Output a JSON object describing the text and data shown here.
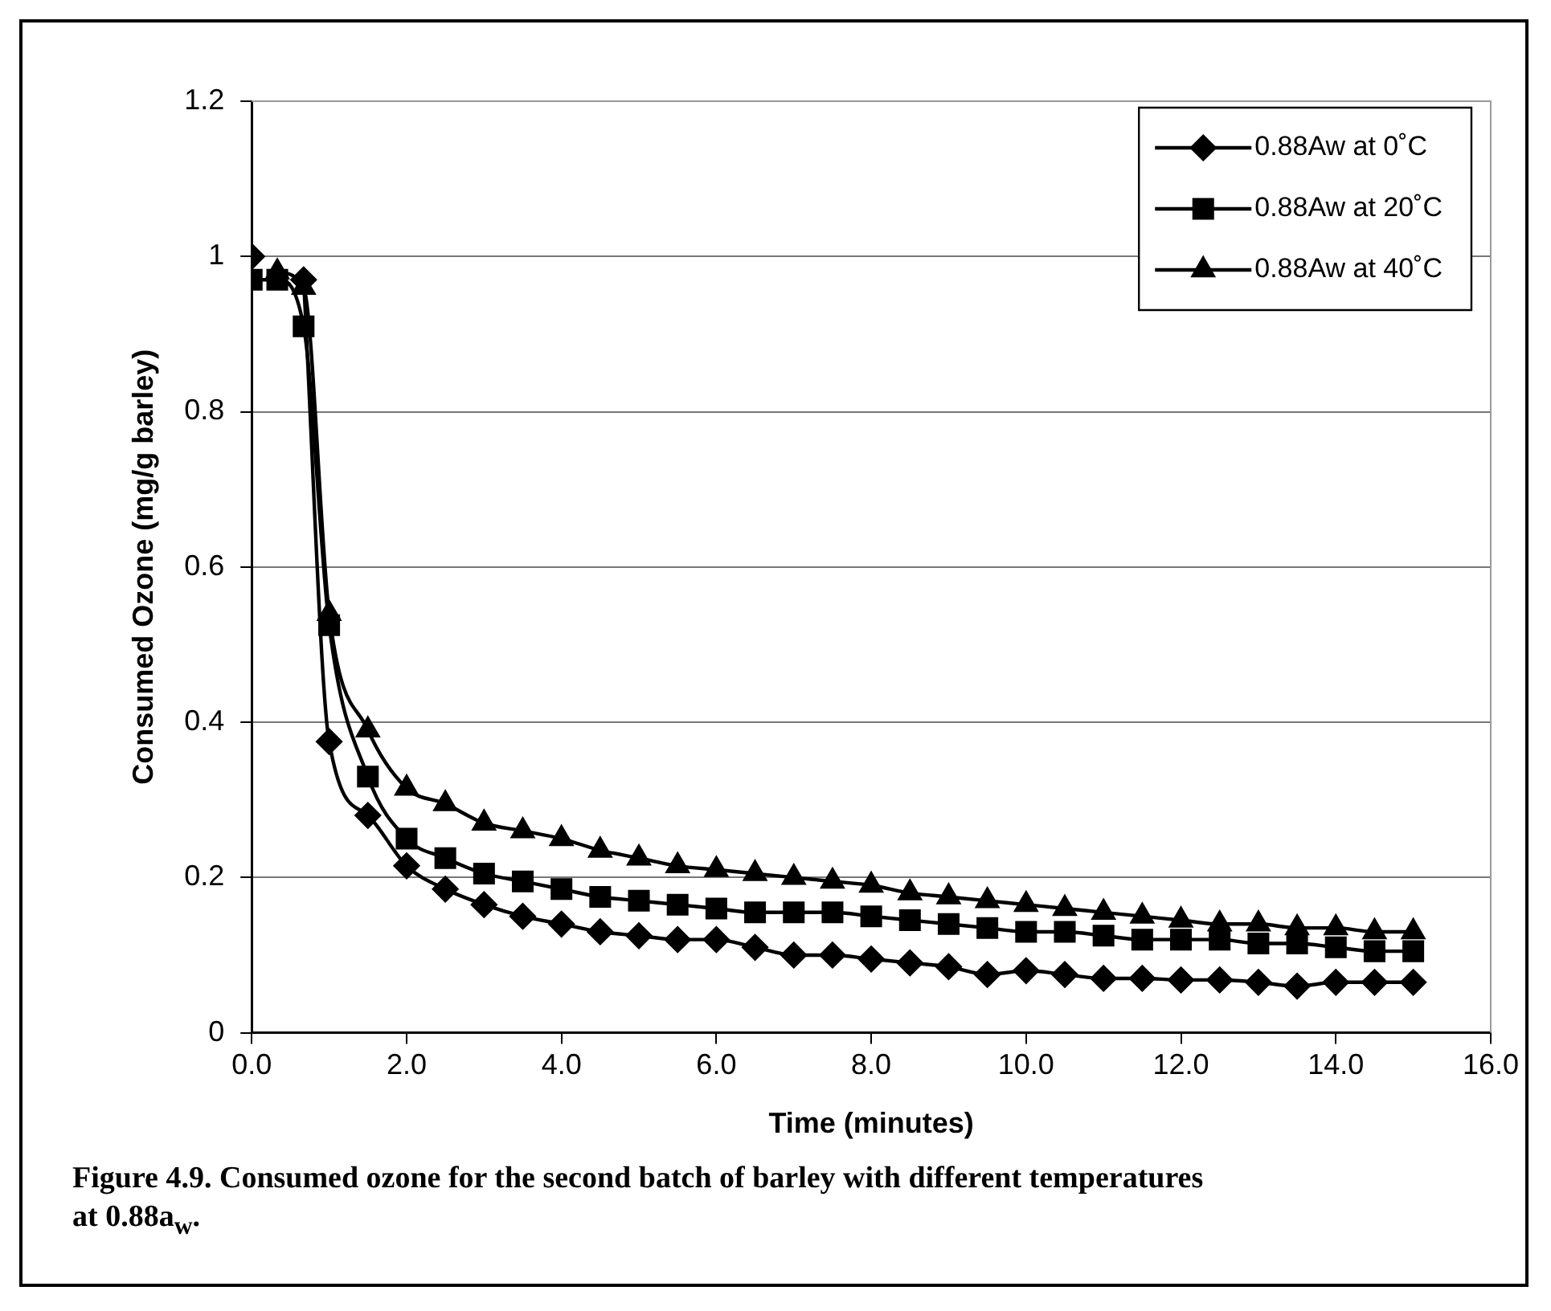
{
  "chart_data": {
    "type": "line",
    "xlabel": "Time (minutes)",
    "ylabel": "Consumed Ozone (mg/g barley)",
    "x": [
      0,
      0.33,
      0.67,
      1,
      1.5,
      2,
      2.5,
      3,
      3.5,
      4,
      4.5,
      5,
      5.5,
      6,
      6.5,
      7,
      7.5,
      8,
      8.5,
      9,
      9.5,
      10,
      10.5,
      11,
      11.5,
      12,
      12.5,
      13,
      13.5,
      14,
      14.5,
      15
    ],
    "series": [
      {
        "name": "0.88Aw at 0˚C",
        "color": "#000000",
        "marker": "diamond",
        "values": [
          1.0,
          null,
          0.97,
          0.375,
          0.28,
          0.215,
          0.185,
          0.165,
          0.15,
          0.14,
          0.13,
          0.125,
          0.12,
          0.12,
          0.11,
          0.1,
          0.1,
          0.095,
          0.09,
          0.085,
          0.075,
          0.08,
          0.075,
          0.07,
          0.07,
          0.068,
          0.068,
          0.065,
          0.06,
          0.065,
          0.065,
          0.065
        ]
      },
      {
        "name": "0.88Aw at 20˚C",
        "color": "#000000",
        "marker": "square",
        "values": [
          0.97,
          0.97,
          0.91,
          0.525,
          0.33,
          0.25,
          0.225,
          0.205,
          0.195,
          0.185,
          0.175,
          0.17,
          0.165,
          0.16,
          0.155,
          0.155,
          0.155,
          0.15,
          0.145,
          0.14,
          0.135,
          0.13,
          0.13,
          0.125,
          0.12,
          0.12,
          0.12,
          0.115,
          0.115,
          0.11,
          0.105,
          0.105
        ]
      },
      {
        "name": "0.88Aw at 40˚C",
        "color": "#000000",
        "marker": "triangle",
        "values": [
          null,
          0.98,
          0.96,
          0.54,
          0.39,
          0.315,
          0.295,
          0.27,
          0.26,
          0.25,
          0.235,
          0.225,
          0.215,
          0.21,
          0.205,
          0.2,
          0.195,
          0.19,
          0.18,
          0.175,
          0.17,
          0.165,
          0.16,
          0.155,
          0.15,
          0.145,
          0.14,
          0.14,
          0.135,
          0.135,
          0.13,
          0.13
        ]
      }
    ],
    "xlim": [
      0,
      16
    ],
    "xticks": [
      {
        "value": 0,
        "label": "0.0"
      },
      {
        "value": 2,
        "label": "2.0"
      },
      {
        "value": 4,
        "label": "4.0"
      },
      {
        "value": 6,
        "label": "6.0"
      },
      {
        "value": 8,
        "label": "8.0"
      },
      {
        "value": 10,
        "label": "10.0"
      },
      {
        "value": 12,
        "label": "12.0"
      },
      {
        "value": 14,
        "label": "14.0"
      },
      {
        "value": 16,
        "label": "16.0"
      }
    ],
    "ylim": [
      0,
      1.2
    ],
    "yticks": [
      0,
      0.2,
      0.4,
      0.6,
      0.8,
      1,
      1.2
    ],
    "grid": "y",
    "legend": "top right",
    "line_style": "solid",
    "annotations": [
      "Figure 4.9.  Consumed ozone for the second batch of barley with different temperatures at 0.88a$_{w}$."
    ]
  }
}
